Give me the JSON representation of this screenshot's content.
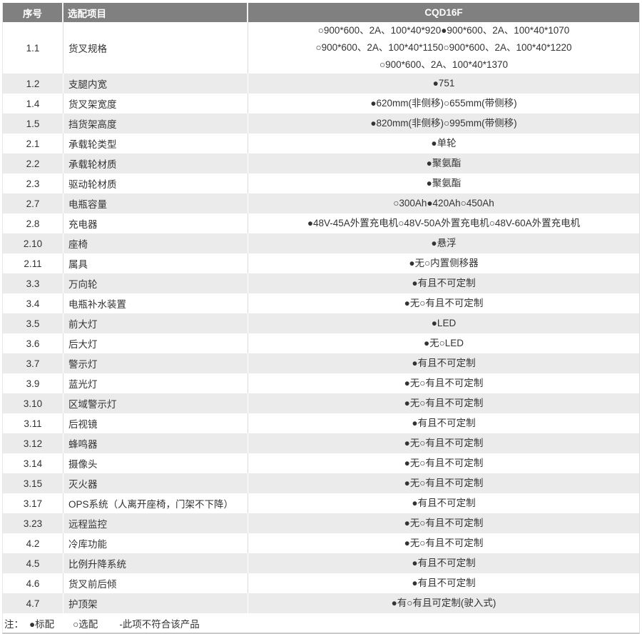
{
  "colors": {
    "header_bg": "#808080",
    "header_text": "#ffffff",
    "stripe_bg": "#ebebeb",
    "row_bg": "#ffffff",
    "body_text": "#333333",
    "divider": "#dcdcdc",
    "bottom_border": "#c9c9c9"
  },
  "table": {
    "columns": [
      "序号",
      "选配项目",
      "CQD16F"
    ],
    "rows": [
      {
        "no": "1.1",
        "item": "货叉规格",
        "values": [
          "○900*600、2A、100*40*920●900*600、2A、100*40*1070",
          "○900*600、2A、100*40*1150○900*600、2A、100*40*1220",
          "○900*600、2A、100*40*1370"
        ]
      },
      {
        "no": "1.2",
        "item": "支腿内宽",
        "values": [
          "●751"
        ]
      },
      {
        "no": "1.4",
        "item": "货叉架宽度",
        "values": [
          "●620mm(非侧移)○655mm(带侧移)"
        ]
      },
      {
        "no": "1.5",
        "item": "挡货架高度",
        "values": [
          "●820mm(非侧移)○995mm(带侧移)"
        ]
      },
      {
        "no": "2.1",
        "item": "承载轮类型",
        "values": [
          "●单轮"
        ]
      },
      {
        "no": "2.2",
        "item": "承载轮材质",
        "values": [
          "●聚氨酯"
        ]
      },
      {
        "no": "2.3",
        "item": "驱动轮材质",
        "values": [
          "●聚氨酯"
        ]
      },
      {
        "no": "2.7",
        "item": "电瓶容量",
        "values": [
          "○300Ah●420Ah○450Ah"
        ]
      },
      {
        "no": "2.8",
        "item": "充电器",
        "values": [
          "●48V-45A外置充电机○48V-50A外置充电机○48V-60A外置充电机"
        ]
      },
      {
        "no": "2.10",
        "item": "座椅",
        "values": [
          "●悬浮"
        ]
      },
      {
        "no": "2.11",
        "item": "属具",
        "values": [
          "●无○内置侧移器"
        ]
      },
      {
        "no": "3.3",
        "item": "万向轮",
        "values": [
          "●有且不可定制"
        ]
      },
      {
        "no": "3.4",
        "item": "电瓶补水装置",
        "values": [
          "●无○有且不可定制"
        ]
      },
      {
        "no": "3.5",
        "item": "前大灯",
        "values": [
          "●LED"
        ]
      },
      {
        "no": "3.6",
        "item": "后大灯",
        "values": [
          "●无○LED"
        ]
      },
      {
        "no": "3.7",
        "item": "警示灯",
        "values": [
          "●有且不可定制"
        ]
      },
      {
        "no": "3.9",
        "item": "蓝光灯",
        "values": [
          "●无○有且不可定制"
        ]
      },
      {
        "no": "3.10",
        "item": "区域警示灯",
        "values": [
          "●无○有且不可定制"
        ]
      },
      {
        "no": "3.11",
        "item": "后视镜",
        "values": [
          "●有且不可定制"
        ]
      },
      {
        "no": "3.12",
        "item": "蜂鸣器",
        "values": [
          "●无○有且不可定制"
        ]
      },
      {
        "no": "3.14",
        "item": "摄像头",
        "values": [
          "●无○有且不可定制"
        ]
      },
      {
        "no": "3.15",
        "item": "灭火器",
        "values": [
          "●无○有且不可定制"
        ]
      },
      {
        "no": "3.17",
        "item": "OPS系统（人离开座椅，门架不下降）",
        "values": [
          "●有且不可定制"
        ]
      },
      {
        "no": "3.23",
        "item": "远程监控",
        "values": [
          "●无○有且不可定制"
        ]
      },
      {
        "no": "4.2",
        "item": "冷库功能",
        "values": [
          "●无○有且不可定制"
        ]
      },
      {
        "no": "4.5",
        "item": "比例升降系统",
        "values": [
          "●有且不可定制"
        ]
      },
      {
        "no": "4.6",
        "item": "货叉前后倾",
        "values": [
          "●有且不可定制"
        ]
      },
      {
        "no": "4.7",
        "item": "护顶架",
        "values": [
          "●有○有且可定制(驶入式)"
        ]
      }
    ],
    "note": {
      "label": "注：",
      "items": [
        "●标配",
        "○选配",
        "-此项不符合该产品"
      ]
    }
  }
}
